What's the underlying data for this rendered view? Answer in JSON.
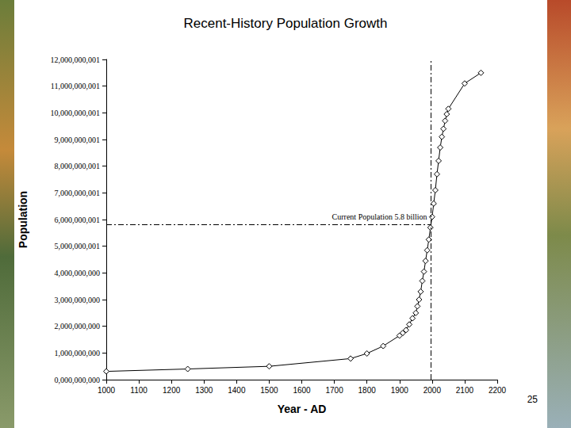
{
  "chart_data": {
    "type": "line",
    "title": "Recent-History Population Growth",
    "x_label": "Year - AD",
    "y_label": "Population",
    "x": [
      1000,
      1250,
      1500,
      1750,
      1800,
      1850,
      1900,
      1910,
      1920,
      1930,
      1940,
      1950,
      1955,
      1960,
      1965,
      1970,
      1975,
      1980,
      1985,
      1990,
      1995,
      2000,
      2005,
      2010,
      2015,
      2020,
      2025,
      2030,
      2035,
      2040,
      2045,
      2050,
      2100,
      2150
    ],
    "values": [
      310000000,
      400000000,
      500000000,
      790000000,
      980000000,
      1260000000,
      1650000000,
      1750000000,
      1860000000,
      2070000000,
      2300000000,
      2500000000,
      2750000000,
      3000000000,
      3300000000,
      3700000000,
      4050000000,
      4450000000,
      4850000000,
      5250000000,
      5700000000,
      6100000000,
      6600000000,
      7100000000,
      7700000000,
      8200000000,
      8700000000,
      9100000000,
      9400000000,
      9700000000,
      9950000000,
      10150000000,
      11100000000,
      11500000000
    ],
    "color": "#000000",
    "marker": "diamond",
    "line_style": "solid",
    "xlim": [
      1000,
      2200
    ],
    "xticks": [
      1000,
      1100,
      1200,
      1300,
      1400,
      1500,
      1600,
      1700,
      1800,
      1900,
      2000,
      2100,
      2200
    ],
    "ylim": [
      0,
      12000000001
    ],
    "yticks": [
      {
        "value": 0,
        "label": "0,000,000,000"
      },
      {
        "value": 1000000000,
        "label": "1,000,000,000"
      },
      {
        "value": 2000000000,
        "label": "2,000,000,000"
      },
      {
        "value": 3000000000,
        "label": "3,000,000,000"
      },
      {
        "value": 4000000000,
        "label": "4,000,000,000"
      },
      {
        "value": 5000000001,
        "label": "5,000,000,001"
      },
      {
        "value": 6000000001,
        "label": "6,000,000,001"
      },
      {
        "value": 7000000001,
        "label": "7,000,000,001"
      },
      {
        "value": 8000000001,
        "label": "8,000,000,001"
      },
      {
        "value": 9000000001,
        "label": "9,000,000,001"
      },
      {
        "value": 10000000001,
        "label": "10,000,000,001"
      },
      {
        "value": 11000000001,
        "label": "11,000,000,001"
      },
      {
        "value": 12000000001,
        "label": "12,000,000,001"
      }
    ],
    "grid": false,
    "annotations": [
      {
        "text": "Current Population 5.8 billion",
        "x": 1997,
        "y": 5800000000,
        "line_style": "dashdot"
      }
    ]
  },
  "slide_number": "25"
}
